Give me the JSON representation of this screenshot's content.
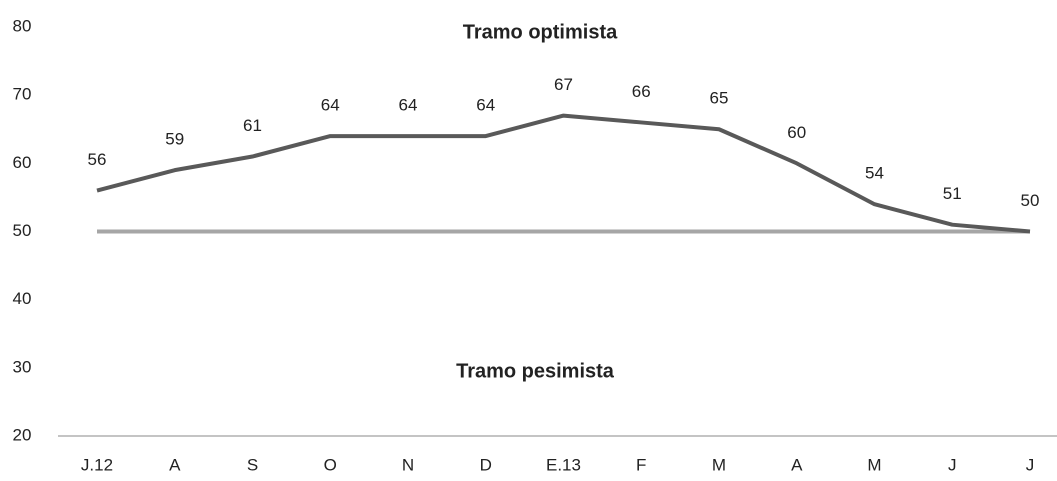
{
  "chart_data": {
    "type": "line",
    "categories": [
      "J.12",
      "A",
      "S",
      "O",
      "N",
      "D",
      "E.13",
      "F",
      "M",
      "A",
      "M",
      "J",
      "J"
    ],
    "series": [
      {
        "color": "#595959",
        "values": [
          56,
          59,
          61,
          64,
          64,
          64,
          67,
          66,
          65,
          60,
          54,
          51,
          50
        ],
        "data_labels": true
      },
      {
        "color": "#a6a6a6",
        "values": [
          50,
          50,
          50,
          50,
          50,
          50,
          50,
          50,
          50,
          50,
          50,
          50,
          50
        ],
        "data_labels": false
      }
    ],
    "annotations": [
      "Tramo optimista",
      "Tramo pesimista"
    ],
    "ylim": [
      20,
      80
    ],
    "yticks": [
      20,
      30,
      40,
      50,
      60,
      70,
      80
    ],
    "grid": false
  }
}
